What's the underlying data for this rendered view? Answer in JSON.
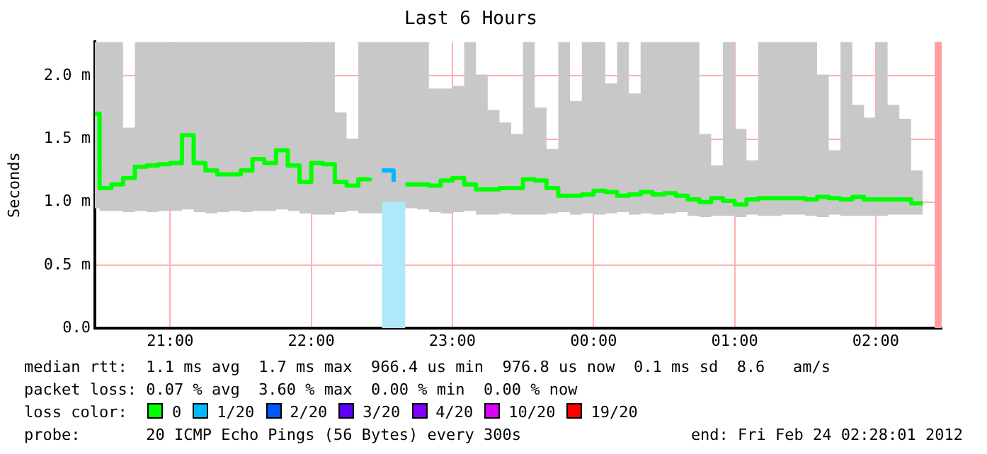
{
  "chart_data": {
    "type": "step",
    "title": "Last 6 Hours",
    "ylabel": "Seconds",
    "legend_title": "loss color:",
    "legend": "bottom",
    "grid": true,
    "xlim": [
      "2012-02-23T20:28",
      "2012-02-24T02:28"
    ],
    "xticks": [
      {
        "value": "2012-02-23T21:00",
        "label": "21:00"
      },
      {
        "value": "2012-02-23T22:00",
        "label": "22:00"
      },
      {
        "value": "2012-02-23T23:00",
        "label": "23:00"
      },
      {
        "value": "2012-02-24T00:00",
        "label": "00:00"
      },
      {
        "value": "2012-02-24T01:00",
        "label": "01:00"
      },
      {
        "value": "2012-02-24T02:00",
        "label": "02:00"
      }
    ],
    "ylim": [
      0,
      2.27
    ],
    "yticks": [
      {
        "value": 0,
        "label": "0.0"
      },
      {
        "value": 0.5,
        "label": "0.5 m"
      },
      {
        "value": 1,
        "label": "1.0 m"
      },
      {
        "value": 1.5,
        "label": "1.5 m"
      },
      {
        "value": 2,
        "label": "2.0 m"
      }
    ],
    "x": [
      "2012-02-23T20:28",
      "2012-02-23T20:30",
      "2012-02-23T20:35",
      "2012-02-23T20:40",
      "2012-02-23T20:45",
      "2012-02-23T20:50",
      "2012-02-23T20:55",
      "2012-02-23T21:00",
      "2012-02-23T21:05",
      "2012-02-23T21:10",
      "2012-02-23T21:15",
      "2012-02-23T21:20",
      "2012-02-23T21:25",
      "2012-02-23T21:30",
      "2012-02-23T21:35",
      "2012-02-23T21:40",
      "2012-02-23T21:45",
      "2012-02-23T21:50",
      "2012-02-23T21:55",
      "2012-02-23T22:00",
      "2012-02-23T22:05",
      "2012-02-23T22:10",
      "2012-02-23T22:15",
      "2012-02-23T22:20",
      "2012-02-23T22:25",
      "2012-02-23T22:30",
      "2012-02-23T22:35",
      "2012-02-23T22:40",
      "2012-02-23T22:45",
      "2012-02-23T22:50",
      "2012-02-23T22:55",
      "2012-02-23T23:00",
      "2012-02-23T23:05",
      "2012-02-23T23:10",
      "2012-02-23T23:15",
      "2012-02-23T23:20",
      "2012-02-23T23:25",
      "2012-02-23T23:30",
      "2012-02-23T23:35",
      "2012-02-23T23:40",
      "2012-02-23T23:45",
      "2012-02-23T23:50",
      "2012-02-23T23:55",
      "2012-02-24T00:00",
      "2012-02-24T00:05",
      "2012-02-24T00:10",
      "2012-02-24T00:15",
      "2012-02-24T00:20",
      "2012-02-24T00:25",
      "2012-02-24T00:30",
      "2012-02-24T00:35",
      "2012-02-24T00:40",
      "2012-02-24T00:45",
      "2012-02-24T00:50",
      "2012-02-24T00:55",
      "2012-02-24T01:00",
      "2012-02-24T01:05",
      "2012-02-24T01:10",
      "2012-02-24T01:15",
      "2012-02-24T01:20",
      "2012-02-24T01:25",
      "2012-02-24T01:30",
      "2012-02-24T01:35",
      "2012-02-24T01:40",
      "2012-02-24T01:45",
      "2012-02-24T01:50",
      "2012-02-24T01:55",
      "2012-02-24T02:00",
      "2012-02-24T02:05",
      "2012-02-24T02:10",
      "2012-02-24T02:15",
      "2012-02-24T02:20"
    ],
    "series": [
      {
        "type": "area",
        "color": "#aee8fa",
        "x": [
          "2012-02-23T22:30",
          "2012-02-23T22:40"
        ],
        "values": [
          1.0,
          1.0
        ]
      },
      {
        "name": "0",
        "color": "#00ff00",
        "values": [
          1.7,
          1.11,
          1.14,
          1.19,
          1.28,
          1.29,
          1.3,
          1.31,
          1.53,
          1.31,
          1.25,
          1.22,
          1.22,
          1.25,
          1.34,
          1.31,
          1.41,
          1.29,
          1.16,
          1.31,
          1.3,
          1.16,
          1.13,
          1.18,
          1.19,
          null,
          null,
          1.14,
          1.14,
          1.13,
          1.17,
          1.19,
          1.14,
          1.1,
          1.1,
          1.11,
          1.11,
          1.18,
          1.17,
          1.11,
          1.05,
          1.05,
          1.06,
          1.09,
          1.08,
          1.05,
          1.06,
          1.08,
          1.06,
          1.07,
          1.05,
          1.02,
          1.0,
          1.03,
          1.01,
          0.98,
          1.02,
          1.03,
          1.03,
          1.03,
          1.03,
          1.02,
          1.04,
          1.03,
          1.02,
          1.04,
          1.02,
          1.02,
          1.02,
          1.02,
          0.99,
          0.99
        ],
        "lower": [
          0.95,
          0.93,
          0.93,
          0.92,
          0.93,
          0.92,
          0.93,
          0.93,
          0.94,
          0.92,
          0.91,
          0.92,
          0.93,
          0.92,
          0.93,
          0.93,
          0.94,
          0.93,
          0.91,
          0.9,
          0.9,
          0.92,
          0.93,
          0.91,
          0.91,
          0.93,
          0.95,
          0.95,
          0.94,
          0.92,
          0.91,
          0.92,
          0.93,
          0.9,
          0.9,
          0.91,
          0.9,
          0.9,
          0.9,
          0.91,
          0.92,
          0.9,
          0.91,
          0.9,
          0.91,
          0.92,
          0.9,
          0.91,
          0.9,
          0.91,
          0.92,
          0.89,
          0.88,
          0.89,
          0.89,
          0.88,
          0.9,
          0.89,
          0.89,
          0.9,
          0.9,
          0.89,
          0.88,
          0.9,
          0.89,
          0.89,
          0.89,
          0.89,
          0.9,
          0.9,
          0.9,
          0.9
        ],
        "upper": [
          2.27,
          2.27,
          2.27,
          1.59,
          2.27,
          2.27,
          2.27,
          2.27,
          2.27,
          2.27,
          2.27,
          2.27,
          2.27,
          2.27,
          2.27,
          2.27,
          2.27,
          2.27,
          2.27,
          2.27,
          2.27,
          1.71,
          1.5,
          2.27,
          2.27,
          2.27,
          2.27,
          2.27,
          2.27,
          1.9,
          1.9,
          1.92,
          2.27,
          2.01,
          1.73,
          1.63,
          1.54,
          2.27,
          1.75,
          1.42,
          2.27,
          1.8,
          2.27,
          2.27,
          1.94,
          2.27,
          1.86,
          2.27,
          2.27,
          2.27,
          2.27,
          2.27,
          1.54,
          1.29,
          2.27,
          1.58,
          1.33,
          2.27,
          2.27,
          2.27,
          2.27,
          2.27,
          2.01,
          1.41,
          2.27,
          1.77,
          1.67,
          2.27,
          1.77,
          1.66,
          1.25,
          1.18
        ]
      },
      {
        "name": "1/20",
        "color": "#00b8ff",
        "x": [
          "2012-02-23T22:30",
          "2012-02-23T22:35"
        ],
        "values": [
          1.25,
          1.16
        ]
      },
      {
        "name": "2/20",
        "color": "#0059ff",
        "values": [
          null,
          null,
          null,
          null,
          null,
          null,
          null,
          null,
          null,
          null,
          null,
          null,
          null,
          null,
          null,
          null,
          null,
          null,
          null,
          null,
          null,
          null,
          null,
          null,
          null,
          null,
          null,
          null,
          null,
          null,
          null,
          null,
          null,
          null,
          null,
          null,
          null,
          null,
          null,
          null,
          null,
          null,
          null,
          null,
          null,
          null,
          null,
          null,
          null,
          null,
          null,
          null,
          null,
          null,
          null,
          null,
          null,
          null,
          null,
          null,
          null,
          null,
          null,
          null,
          null,
          null,
          null,
          null,
          null,
          null,
          null,
          null
        ]
      },
      {
        "name": "3/20",
        "color": "#5e00ff",
        "values": [
          null,
          null,
          null,
          null,
          null,
          null,
          null,
          null,
          null,
          null,
          null,
          null,
          null,
          null,
          null,
          null,
          null,
          null,
          null,
          null,
          null,
          null,
          null,
          null,
          null,
          null,
          null,
          null,
          null,
          null,
          null,
          null,
          null,
          null,
          null,
          null,
          null,
          null,
          null,
          null,
          null,
          null,
          null,
          null,
          null,
          null,
          null,
          null,
          null,
          null,
          null,
          null,
          null,
          null,
          null,
          null,
          null,
          null,
          null,
          null,
          null,
          null,
          null,
          null,
          null,
          null,
          null,
          null,
          null,
          null,
          null,
          null
        ]
      },
      {
        "name": "4/20",
        "color": "#7e00ff",
        "values": [
          null,
          null,
          null,
          null,
          null,
          null,
          null,
          null,
          null,
          null,
          null,
          null,
          null,
          null,
          null,
          null,
          null,
          null,
          null,
          null,
          null,
          null,
          null,
          null,
          null,
          null,
          null,
          null,
          null,
          null,
          null,
          null,
          null,
          null,
          null,
          null,
          null,
          null,
          null,
          null,
          null,
          null,
          null,
          null,
          null,
          null,
          null,
          null,
          null,
          null,
          null,
          null,
          null,
          null,
          null,
          null,
          null,
          null,
          null,
          null,
          null,
          null,
          null,
          null,
          null,
          null,
          null,
          null,
          null,
          null,
          null,
          null
        ]
      },
      {
        "name": "10/20",
        "color": "#dd00ff",
        "values": [
          null,
          null,
          null,
          null,
          null,
          null,
          null,
          null,
          null,
          null,
          null,
          null,
          null,
          null,
          null,
          null,
          null,
          null,
          null,
          null,
          null,
          null,
          null,
          null,
          null,
          null,
          null,
          null,
          null,
          null,
          null,
          null,
          null,
          null,
          null,
          null,
          null,
          null,
          null,
          null,
          null,
          null,
          null,
          null,
          null,
          null,
          null,
          null,
          null,
          null,
          null,
          null,
          null,
          null,
          null,
          null,
          null,
          null,
          null,
          null,
          null,
          null,
          null,
          null,
          null,
          null,
          null,
          null,
          null,
          null,
          null,
          null
        ]
      },
      {
        "name": "19/20",
        "color": "#ff0000",
        "values": [
          null,
          null,
          null,
          null,
          null,
          null,
          null,
          null,
          null,
          null,
          null,
          null,
          null,
          null,
          null,
          null,
          null,
          null,
          null,
          null,
          null,
          null,
          null,
          null,
          null,
          null,
          null,
          null,
          null,
          null,
          null,
          null,
          null,
          null,
          null,
          null,
          null,
          null,
          null,
          null,
          null,
          null,
          null,
          null,
          null,
          null,
          null,
          null,
          null,
          null,
          null,
          null,
          null,
          null,
          null,
          null,
          null,
          null,
          null,
          null,
          null,
          null,
          null,
          null,
          null,
          null,
          null,
          null,
          null,
          null,
          null,
          null
        ]
      }
    ],
    "bands": [
      {
        "axis": "x",
        "from": "2012-02-24T02:25",
        "to": "2012-02-24T02:28",
        "color": "#ff9f9f"
      }
    ],
    "annotations": [
      "median rtt:  1.1 ms avg  1.7 ms max  966.4 us min  976.8 us now  0.1 ms sd  8.6   am/s",
      "packet loss: 0.07 % avg  3.60 % max  0.00 % min  0.00 % now",
      "probe:       20 ICMP Echo Pings (56 Bytes) every 300s",
      "end: Fri Feb 24 02:28:01 2012"
    ]
  }
}
